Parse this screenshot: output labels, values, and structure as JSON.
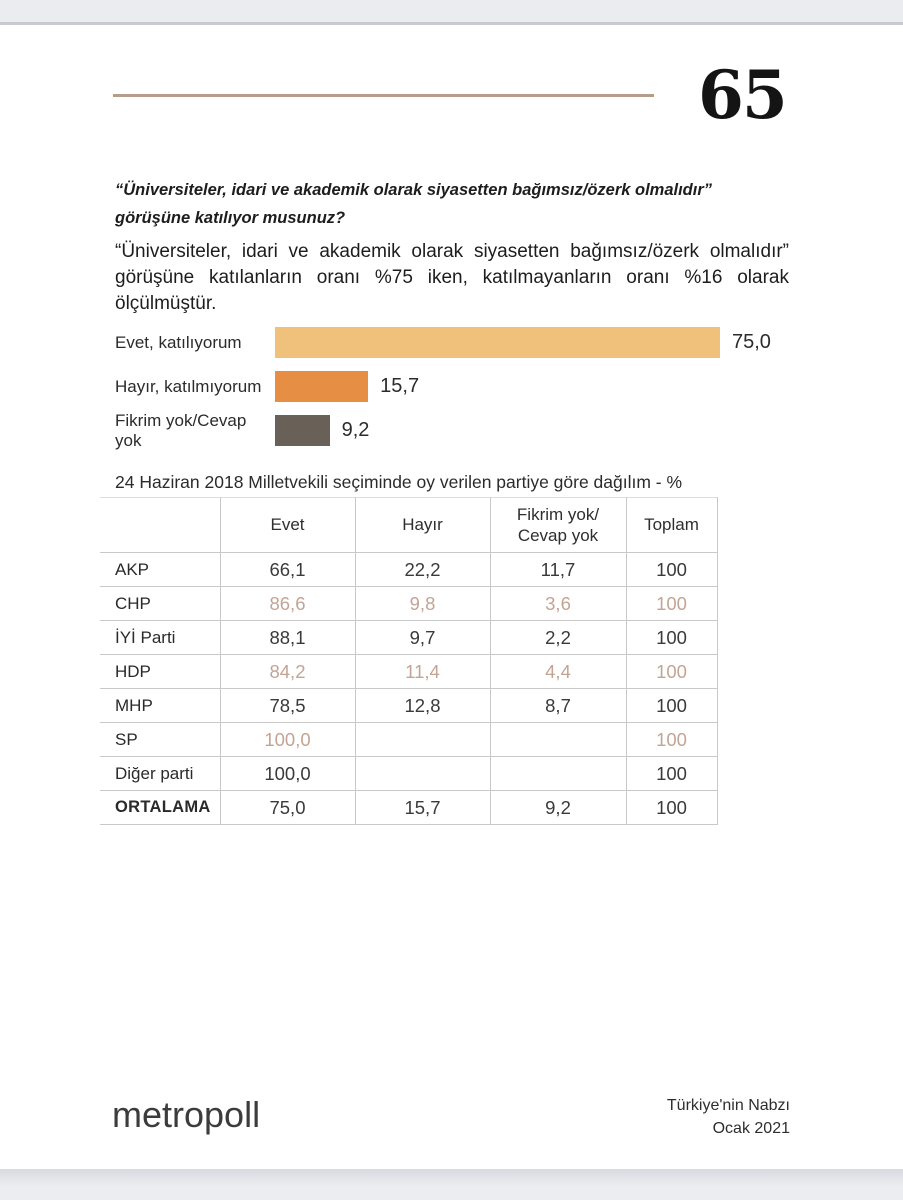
{
  "page": {
    "number": "65",
    "accent_line_color": "#b99b89",
    "backdrop_color": "#ebecf0"
  },
  "question": {
    "line1": "“Üniversiteler, idari ve akademik olarak siyasetten bağımsız/özerk olmalıdır”",
    "line2": "görüşüne katılıyor musunuz?"
  },
  "summary": {
    "line1": "“Üniversiteler, idari ve akademik olarak siyasetten bağımsız/özerk olmalıdır”",
    "line2": "görüşüne katılanların oranı %75 iken, katılmayanların oranı %16 olarak",
    "line3": "ölçülmüştür."
  },
  "chart_data": {
    "type": "bar",
    "orientation": "horizontal",
    "categories": [
      "Evet, katılıyorum",
      "Hayır, katılmıyorum",
      "Fikrim yok/Cevap yok"
    ],
    "values": [
      75.0,
      15.7,
      9.2
    ],
    "value_labels": [
      "75,0",
      "15,7",
      "9,2"
    ],
    "colors": [
      "#efc17b",
      "#e68e43",
      "#696058"
    ],
    "axis_max": 75,
    "grid": false,
    "legend": false
  },
  "table": {
    "title": "24 Haziran 2018 Milletvekili seçiminde oy verilen partiye göre dağılım - %",
    "muted_value_color": "#c3a494",
    "columns": [
      "",
      "Evet",
      "Hayır",
      "Fikrim yok/ Cevap yok",
      "Toplam"
    ],
    "rows": [
      {
        "party": "AKP",
        "values": [
          "66,1",
          "22,2",
          "11,7",
          "100"
        ],
        "muted": false,
        "emph": false
      },
      {
        "party": "CHP",
        "values": [
          "86,6",
          "9,8",
          "3,6",
          "100"
        ],
        "muted": true,
        "emph": false
      },
      {
        "party": "İYİ Parti",
        "values": [
          "88,1",
          "9,7",
          "2,2",
          "100"
        ],
        "muted": false,
        "emph": false
      },
      {
        "party": "HDP",
        "values": [
          "84,2",
          "11,4",
          "4,4",
          "100"
        ],
        "muted": true,
        "emph": false
      },
      {
        "party": "MHP",
        "values": [
          "78,5",
          "12,8",
          "8,7",
          "100"
        ],
        "muted": false,
        "emph": false
      },
      {
        "party": "SP",
        "values": [
          "100,0",
          "",
          "",
          "100"
        ],
        "muted": true,
        "emph": false
      },
      {
        "party": "Diğer parti",
        "values": [
          "100,0",
          "",
          "",
          "100"
        ],
        "muted": false,
        "emph": false
      },
      {
        "party": "ORTALAMA",
        "values": [
          "75,0",
          "15,7",
          "9,2",
          "100"
        ],
        "muted": false,
        "emph": true
      }
    ]
  },
  "footer": {
    "logo_text": "metropoll",
    "right_line1": "Türkiye'nin Nabzı",
    "right_line2": "Ocak 2021"
  }
}
